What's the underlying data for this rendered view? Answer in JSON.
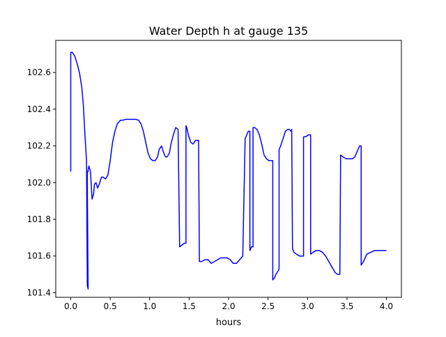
{
  "chart_data": {
    "type": "line",
    "title": "Water Depth h at gauge 135",
    "xlabel": "hours",
    "ylabel": "",
    "xlim": [
      -0.19,
      4.19
    ],
    "ylim": [
      101.375,
      102.775
    ],
    "xticks": [
      0.0,
      0.5,
      1.0,
      1.5,
      2.0,
      2.5,
      3.0,
      3.5,
      4.0
    ],
    "xtick_labels": [
      "0.0",
      "0.5",
      "1.0",
      "1.5",
      "2.0",
      "2.5",
      "3.0",
      "3.5",
      "4.0"
    ],
    "yticks": [
      101.4,
      101.6,
      101.8,
      102.0,
      102.2,
      102.4,
      102.6
    ],
    "ytick_labels": [
      "101.4",
      "101.6",
      "101.8",
      "102.0",
      "102.2",
      "102.4",
      "102.6"
    ],
    "grid": false,
    "legend": "none",
    "series": [
      {
        "color": "#0000ff",
        "x": [
          0.0,
          0.0,
          0.02,
          0.05,
          0.08,
          0.11,
          0.14,
          0.16,
          0.18,
          0.2,
          0.21,
          0.22,
          0.21,
          0.21,
          0.22,
          0.22,
          0.23,
          0.25,
          0.27,
          0.29,
          0.3,
          0.32,
          0.34,
          0.36,
          0.39,
          0.41,
          0.44,
          0.47,
          0.5,
          0.53,
          0.56,
          0.59,
          0.63,
          0.66,
          0.7,
          0.74,
          0.78,
          0.82,
          0.86,
          0.89,
          0.92,
          0.95,
          0.98,
          1.01,
          1.04,
          1.07,
          1.1,
          1.12,
          1.15,
          1.18,
          1.2,
          1.22,
          1.25,
          1.27,
          1.3,
          1.33,
          1.36,
          1.38,
          1.38,
          1.41,
          1.44,
          1.46,
          1.46,
          1.47,
          1.49,
          1.52,
          1.55,
          1.58,
          1.61,
          1.62,
          1.63,
          1.63,
          1.66,
          1.7,
          1.74,
          1.78,
          1.82,
          1.86,
          1.9,
          1.94,
          1.98,
          2.02,
          2.06,
          2.1,
          2.14,
          2.18,
          2.21,
          2.21,
          2.23,
          2.25,
          2.27,
          2.27,
          2.29,
          2.31,
          2.31,
          2.33,
          2.36,
          2.39,
          2.42,
          2.45,
          2.48,
          2.51,
          2.54,
          2.56,
          2.56,
          2.58,
          2.6,
          2.63,
          2.64,
          2.64,
          2.66,
          2.69,
          2.72,
          2.75,
          2.77,
          2.79,
          2.8,
          2.81,
          2.83,
          2.86,
          2.9,
          2.93,
          2.95,
          2.95,
          2.98,
          3.01,
          3.04,
          3.04,
          3.07,
          3.11,
          3.15,
          3.19,
          3.23,
          3.27,
          3.31,
          3.35,
          3.38,
          3.41,
          3.42,
          3.42,
          3.45,
          3.49,
          3.53,
          3.57,
          3.6,
          3.63,
          3.66,
          3.68,
          3.68,
          3.71,
          3.75,
          3.8,
          3.85,
          3.9,
          3.95,
          4.0
        ],
        "y": [
          102.06,
          102.71,
          102.71,
          102.69,
          102.65,
          102.6,
          102.52,
          102.42,
          102.26,
          102.12,
          101.44,
          101.42,
          101.99,
          102.06,
          102.06,
          102.07,
          102.09,
          102.06,
          101.91,
          101.94,
          101.99,
          102.0,
          101.97,
          101.99,
          102.03,
          102.03,
          102.02,
          102.04,
          102.12,
          102.22,
          102.28,
          102.32,
          102.34,
          102.34,
          102.345,
          102.345,
          102.345,
          102.345,
          102.34,
          102.32,
          102.28,
          102.22,
          102.16,
          102.13,
          102.12,
          102.12,
          102.14,
          102.18,
          102.2,
          102.16,
          102.14,
          102.14,
          102.16,
          102.21,
          102.26,
          102.3,
          102.29,
          101.65,
          101.65,
          101.66,
          101.67,
          101.67,
          102.31,
          102.3,
          102.26,
          102.22,
          102.21,
          102.23,
          102.23,
          102.23,
          101.58,
          101.57,
          101.57,
          101.58,
          101.58,
          101.56,
          101.57,
          101.58,
          101.59,
          101.59,
          101.59,
          101.58,
          101.56,
          101.56,
          101.58,
          101.6,
          102.24,
          102.24,
          102.26,
          102.28,
          102.28,
          101.63,
          101.65,
          101.65,
          102.3,
          102.3,
          102.29,
          102.26,
          102.21,
          102.15,
          102.13,
          102.12,
          102.12,
          102.12,
          101.47,
          101.48,
          101.5,
          101.52,
          101.53,
          102.18,
          102.2,
          102.24,
          102.28,
          102.29,
          102.29,
          102.28,
          102.29,
          101.64,
          101.62,
          101.61,
          101.6,
          101.6,
          101.6,
          102.25,
          102.25,
          102.26,
          102.26,
          101.61,
          101.62,
          101.63,
          101.63,
          101.62,
          101.6,
          101.57,
          101.54,
          101.51,
          101.5,
          101.5,
          102.15,
          102.15,
          102.14,
          102.13,
          102.13,
          102.13,
          102.14,
          102.17,
          102.2,
          102.2,
          101.55,
          101.57,
          101.61,
          101.62,
          101.63,
          101.63,
          101.63,
          101.63
        ]
      }
    ]
  }
}
